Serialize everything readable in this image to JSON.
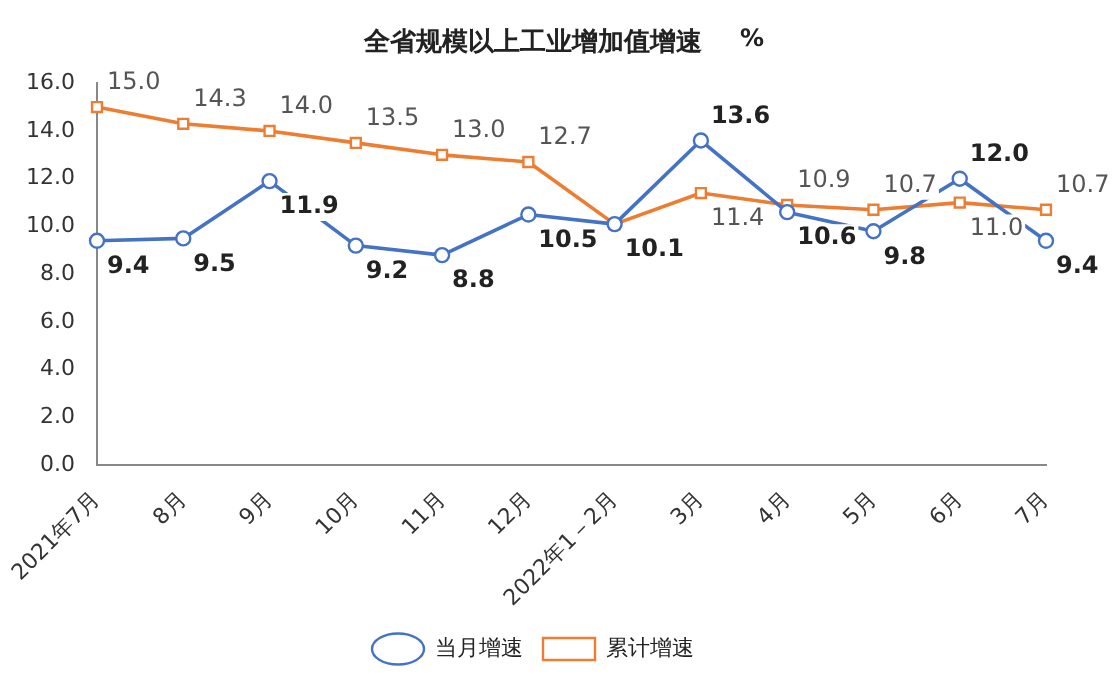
{
  "chart_data": {
    "type": "line",
    "title": "全省规模以上工业增加值增速",
    "ylabel": "%",
    "categories": [
      "2021年7月",
      "8月",
      "9月",
      "10月",
      "11月",
      "12月",
      "2022年1－2月",
      "3月",
      "4月",
      "5月",
      "6月",
      "7月"
    ],
    "series": [
      {
        "name": "当月增速",
        "color": "#4472c4",
        "marker": "circle",
        "values": [
          9.4,
          9.5,
          11.9,
          9.2,
          8.8,
          10.5,
          10.1,
          13.6,
          10.6,
          9.8,
          12.0,
          9.4
        ],
        "value_labels": [
          "9.4",
          "9.5",
          "11.9",
          "9.2",
          "8.8",
          "10.5",
          "10.1",
          "13.6",
          "10.6",
          "9.8",
          "12.0",
          "9.4"
        ]
      },
      {
        "name": "累计增速",
        "color": "#ed7d31",
        "marker": "square",
        "values": [
          15.0,
          14.3,
          14.0,
          13.5,
          13.0,
          12.7,
          10.1,
          11.4,
          10.9,
          10.7,
          11.0,
          10.7
        ],
        "value_labels": [
          "15.0",
          "14.3",
          "14.0",
          "13.5",
          "13.0",
          "12.7",
          null,
          "11.4",
          "10.9",
          "10.7",
          "11.0",
          "10.7"
        ]
      }
    ],
    "ylim": [
      0,
      16
    ],
    "yticks": [
      {
        "value": 0,
        "label": "0.0"
      },
      {
        "value": 2,
        "label": "2.0"
      },
      {
        "value": 4,
        "label": "4.0"
      },
      {
        "value": 6,
        "label": "6.0"
      },
      {
        "value": 8,
        "label": "8.0"
      },
      {
        "value": 10,
        "label": "10.0"
      },
      {
        "value": 12,
        "label": "12.0"
      },
      {
        "value": 14,
        "label": "14.0"
      },
      {
        "value": 16,
        "label": "16.0"
      }
    ],
    "grid": false,
    "legend": "bottom",
    "line_style": "solid"
  }
}
